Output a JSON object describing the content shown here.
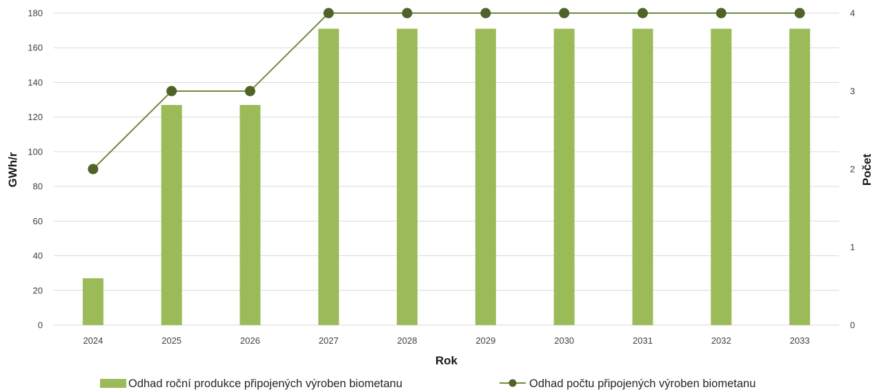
{
  "chart_data": {
    "type": "bar",
    "categories": [
      "2024",
      "2025",
      "2026",
      "2027",
      "2028",
      "2029",
      "2030",
      "2031",
      "2032",
      "2033"
    ],
    "series": [
      {
        "name": "Odhad roční produkce připojených výroben biometanu",
        "type": "bar",
        "axis": "left",
        "values": [
          27,
          127,
          127,
          171,
          171,
          171,
          171,
          171,
          171,
          171
        ],
        "color": "#9bbb59"
      },
      {
        "name": "Odhad počtu připojených výroben biometanu",
        "type": "line",
        "axis": "right",
        "values": [
          2,
          3,
          3,
          4,
          4,
          4,
          4,
          4,
          4,
          4
        ],
        "color": "#6f8a3c",
        "marker_color": "#4f6228"
      }
    ],
    "xlabel": "Rok",
    "ylabel": "GWh/r",
    "y2label": "Počet",
    "ylim": [
      0,
      180
    ],
    "y2lim": [
      0,
      4
    ],
    "yticks": [
      "0",
      "20",
      "40",
      "60",
      "80",
      "100",
      "120",
      "140",
      "160",
      "180"
    ],
    "y2ticks": [
      "0",
      "1",
      "2",
      "3",
      "4"
    ],
    "grid": true,
    "legend_position": "bottom"
  }
}
